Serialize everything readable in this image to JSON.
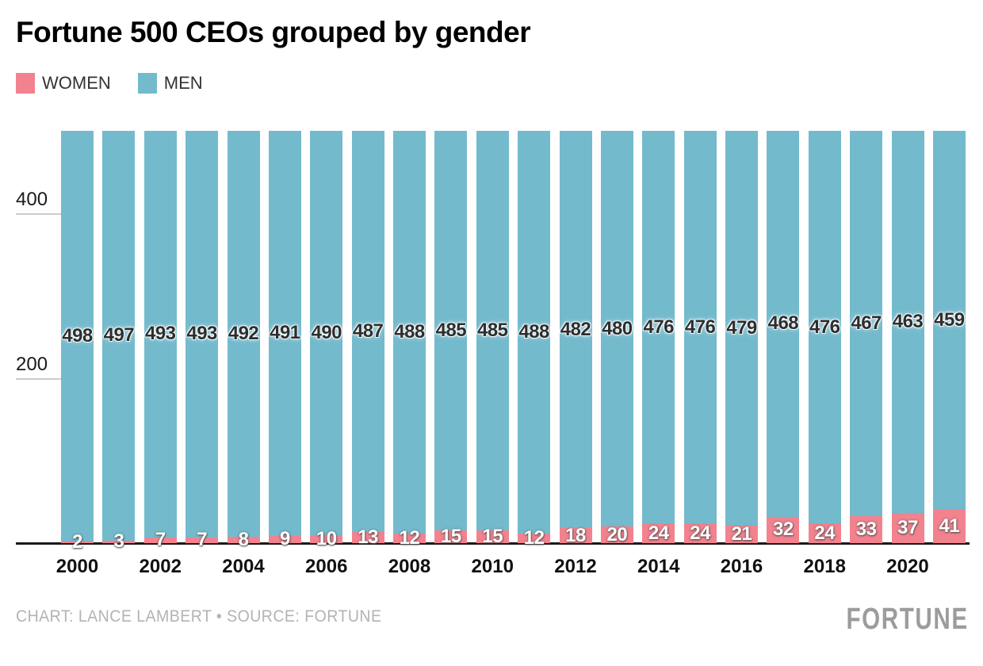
{
  "title": "Fortune 500 CEOs grouped by gender",
  "legend": {
    "women_label": "WOMEN",
    "men_label": "MEN"
  },
  "colors": {
    "women": "#f2828e",
    "men": "#74bacd",
    "axis_line": "#1a1a1a",
    "tick_line": "#cccccc",
    "men_label_text": "#2e2e2e",
    "women_label_text": "#ffffff",
    "footer_text": "#b3b3b3",
    "brand_text": "#9c9c9c"
  },
  "chart_data": {
    "type": "bar",
    "stacked": true,
    "title": "Fortune 500 CEOs grouped by gender",
    "xlabel": "",
    "ylabel": "",
    "categories": [
      2000,
      2001,
      2002,
      2003,
      2004,
      2005,
      2006,
      2007,
      2008,
      2009,
      2010,
      2011,
      2012,
      2013,
      2014,
      2015,
      2016,
      2017,
      2018,
      2019,
      2020,
      2021
    ],
    "series": [
      {
        "name": "WOMEN",
        "color": "#f2828e",
        "values": [
          2,
          3,
          7,
          7,
          8,
          9,
          10,
          13,
          12,
          15,
          15,
          12,
          18,
          20,
          24,
          24,
          21,
          32,
          24,
          33,
          37,
          41
        ]
      },
      {
        "name": "MEN",
        "color": "#74bacd",
        "values": [
          498,
          497,
          493,
          493,
          492,
          491,
          490,
          487,
          488,
          485,
          485,
          488,
          482,
          480,
          476,
          476,
          479,
          468,
          476,
          467,
          463,
          459
        ]
      }
    ],
    "ylim": [
      0,
      500
    ],
    "y_ticks": [
      200,
      400
    ],
    "x_tick_labels": [
      "2000",
      "2002",
      "2004",
      "2006",
      "2008",
      "2010",
      "2012",
      "2014",
      "2016",
      "2018",
      "2020"
    ],
    "grid": false,
    "legend_position": "top-left",
    "bar_labels_shown": true
  },
  "footer": {
    "credit": "CHART: LANCE LAMBERT • SOURCE: FORTUNE",
    "brand": "FORTUNE"
  }
}
